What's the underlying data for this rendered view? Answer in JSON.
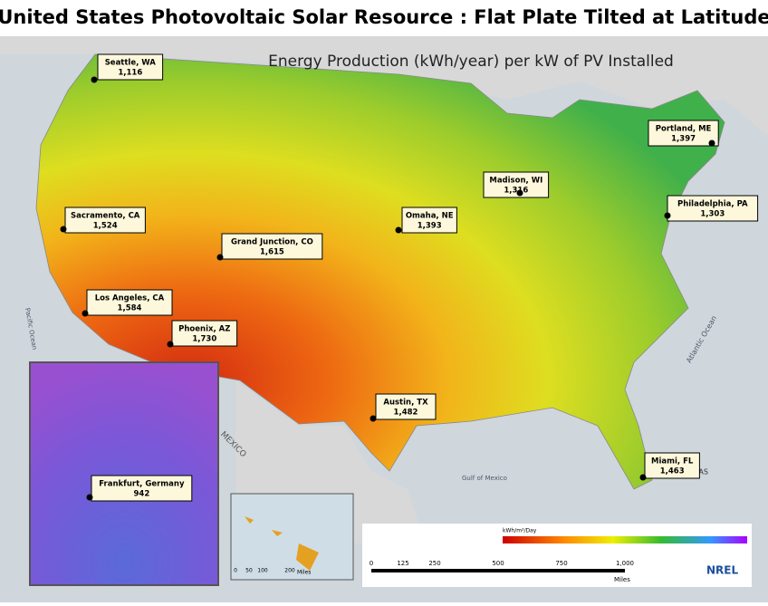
{
  "header": {
    "title": "United States Photovoltaic Solar Resource : Flat Plate Tilted at Latitude",
    "subtitle": "Energy Production (kWh/year) per kW of PV Installed"
  },
  "cities": [
    {
      "name": "Seattle, WA",
      "value": "1,116"
    },
    {
      "name": "Portland, ME",
      "value": "1,397"
    },
    {
      "name": "Madison, WI",
      "value": "1,316"
    },
    {
      "name": "Philadelphia, PA",
      "value": "1,303"
    },
    {
      "name": "Sacramento, CA",
      "value": "1,524"
    },
    {
      "name": "Omaha, NE",
      "value": "1,393"
    },
    {
      "name": "Grand Junction, CO",
      "value": "1,615"
    },
    {
      "name": "Los Angeles, CA",
      "value": "1,584"
    },
    {
      "name": "Phoenix, AZ",
      "value": "1,730"
    },
    {
      "name": "Austin, TX",
      "value": "1,482"
    },
    {
      "name": "Miami, FL",
      "value": "1,463"
    },
    {
      "name": "Frankfurt, Germany",
      "value": "942"
    }
  ],
  "map_labels": {
    "gulf": "Gulf of Mexico",
    "pacific": "Pacific Ocean",
    "atlantic": "Atlantic Ocean",
    "mexico": "MEXICO",
    "bahamas": "BAHAMAS"
  },
  "legend": {
    "unit": "kWh/m²/Day",
    "logo": "NREL",
    "scale": [
      "0",
      "125",
      "250",
      "500",
      "750",
      "1,000"
    ],
    "scale_unit": "Miles",
    "hawaii_scale": [
      "0",
      "50",
      "100",
      "200"
    ],
    "hawaii_unit": "Miles"
  }
}
